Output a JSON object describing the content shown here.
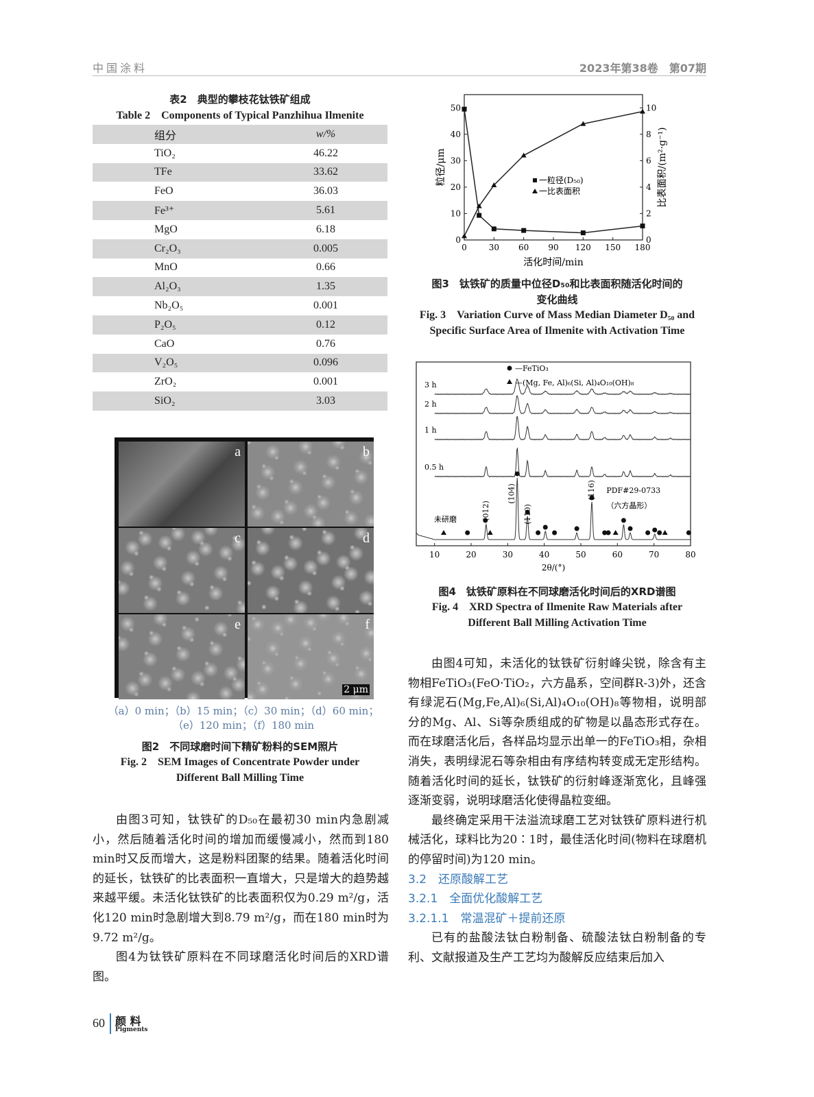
{
  "header": {
    "journal": "中国涂料",
    "issue": "2023年第38卷　第07期"
  },
  "table2": {
    "title_cn": "表2　典型的攀枝花钛铁矿组成",
    "title_en": "Table 2　Components of Typical Panzhihua Ilmenite",
    "col_headers": [
      "组分",
      "w/%"
    ],
    "rows": [
      [
        "TiO₂",
        "46.22"
      ],
      [
        "TFe",
        "33.62"
      ],
      [
        "FeO",
        "36.03"
      ],
      [
        "Fe³⁺",
        "5.61"
      ],
      [
        "MgO",
        "6.18"
      ],
      [
        "Cr₂O₃",
        "0.005"
      ],
      [
        "MnO",
        "0.66"
      ],
      [
        "Al₂O₃",
        "1.35"
      ],
      [
        "Nb₂O₅",
        "0.001"
      ],
      [
        "P₂O₅",
        "0.12"
      ],
      [
        "CaO",
        "0.76"
      ],
      [
        "V₂O₅",
        "0.096"
      ],
      [
        "ZrO₂",
        "0.001"
      ],
      [
        "SiO₂",
        "3.03"
      ]
    ]
  },
  "fig2": {
    "panels": [
      "a",
      "b",
      "c",
      "d",
      "e",
      "f"
    ],
    "scale_bar": "2 μm",
    "subcap1": "（a）0 min；（b）15 min；（c）30 min；（d）60 min；",
    "subcap2": "（e）120 min；（f）180 min",
    "title_cn": "图2　不同球磨时间下精矿粉料的SEM照片",
    "title_en1": "Fig. 2　SEM Images of Concentrate Powder under",
    "title_en2": "Different Ball Milling Time"
  },
  "chart_data": [
    {
      "type": "line",
      "xlabel": "活化时间/min",
      "ylabel": "粒径/μm",
      "y2label": "比表面积/(m²·g⁻¹)",
      "xlim": [
        0,
        180
      ],
      "ylim": [
        0,
        55
      ],
      "y2lim": [
        0,
        11
      ],
      "xticks": [
        "0",
        "30",
        "60",
        "90",
        "120",
        "150",
        "180"
      ],
      "yticks": [
        "0",
        "10",
        "20",
        "30",
        "40",
        "50"
      ],
      "y2ticks": [
        "0",
        "2",
        "4",
        "6",
        "8",
        "10"
      ],
      "x": [
        0,
        15,
        30,
        60,
        120,
        180
      ],
      "series": [
        {
          "name": "一粒径(D₅₀)",
          "axis": "left",
          "marker": "square",
          "values": [
            49.5,
            9.3,
            4.2,
            3.6,
            2.7,
            5.3
          ]
        },
        {
          "name": "一比表面积",
          "axis": "right",
          "marker": "triangle",
          "values": [
            0.29,
            2.56,
            4.15,
            6.4,
            8.79,
            9.72
          ]
        }
      ],
      "legend": "center"
    },
    {
      "type": "line",
      "xlabel": "2θ/(°)",
      "xlim": [
        5,
        80
      ],
      "xticks": [
        "10",
        "20",
        "30",
        "40",
        "50",
        "60",
        "70",
        "80"
      ],
      "legend": [
        {
          "marker": "circle",
          "label": "—FeTiO₃"
        },
        {
          "marker": "triangle",
          "label": "—(Mg, Fe, Al)₆(Si, Al)₄O₁₀(OH)₈"
        }
      ],
      "series_labels": [
        "3 h",
        "2 h",
        "1 h",
        "0.5 h",
        "未研磨"
      ],
      "peaks_2theta": [
        24.1,
        32.6,
        35.4,
        40.3,
        48.9,
        53.0,
        56.5,
        61.7,
        63.5,
        70.2,
        74.5
      ],
      "annotations": {
        "hkl": [
          "(012)",
          "(104)",
          "(110)",
          "(116)"
        ],
        "pdf": "PDF#29-0733",
        "pdf_note": "（六方晶形）"
      },
      "feTiO3_marks": [
        19,
        23.9,
        32.6,
        35.4,
        38.3,
        40.3,
        42.8,
        48.9,
        53.0,
        56.5,
        57.5,
        61.7,
        63.5,
        68.3,
        70.2,
        71.5,
        79.5
      ],
      "chlorite_marks": [
        12.5,
        25.2,
        59.5,
        73
      ]
    }
  ],
  "fig3": {
    "title_cn1": "图3　钛铁矿的质量中位径D₅₀和比表面积随活化时间的",
    "title_cn2": "变化曲线",
    "title_en1": "Fig. 3　Variation Curve of Mass Median Diameter D₅₀ and",
    "title_en2": "Specific Surface Area of Ilmenite with Activation Time"
  },
  "fig4": {
    "title_cn": "图4　钛铁矿原料在不同球磨活化时间后的XRD谱图",
    "title_en1": "Fig. 4　XRD Spectra of Ilmenite Raw Materials after",
    "title_en2": "Different Ball Milling Activation Time"
  },
  "left_body": [
    "由图3可知，钛铁矿的D₅₀在最初30 min内急剧减小，然后随着活化时间的增加而缓慢减小，然而到180 min时又反而增大，这是粉料团聚的结果。随着活化时间的延长，钛铁矿的比表面积一直增大，只是增大的趋势越来越平缓。未活化钛铁矿的比表面积仅为0.29 m²/g，活化120 min时急剧增大到8.79 m²/g，而在180 min时为9.72 m²/g。",
    "图4为钛铁矿原料在不同球磨活化时间后的XRD谱图。"
  ],
  "right_body": [
    "由图4可知，未活化的钛铁矿衍射峰尖锐，除含有主物相FeTiO₃(FeO·TiO₂，六方晶系，空间群R-3)外，还含有绿泥石(Mg,Fe,Al)₆(Si,Al)₄O₁₀(OH)₈等物相，说明部分的Mg、Al、Si等杂质组成的矿物是以晶态形式存在。而在球磨活化后，各样品均显示出单一的FeTiO₃相，杂相消失，表明绿泥石等杂相由有序结构转变成无定形结构。随着活化时间的延长，钛铁矿的衍射峰逐渐宽化，且峰强逐渐变弱，说明球磨活化使得晶粒变细。",
    "最终确定采用干法溢流球磨工艺对钛铁矿原料进行机械活化，球料比为20∶1时，最佳活化时间(物料在球磨机的停留时间)为120 min。"
  ],
  "sections": {
    "s1": "3.2　还原酸解工艺",
    "s2": "3.2.1　全面优化酸解工艺",
    "s3": "3.2.1.1　常温混矿＋提前还原"
  },
  "right_body2": "已有的盐酸法钛白粉制备、硫酸法钛白粉制备的专利、文献报道及生产工艺均为酸解反应结束后加入",
  "footer": {
    "page": "60",
    "journal": "颜 料",
    "journal_en": "Pigments"
  }
}
